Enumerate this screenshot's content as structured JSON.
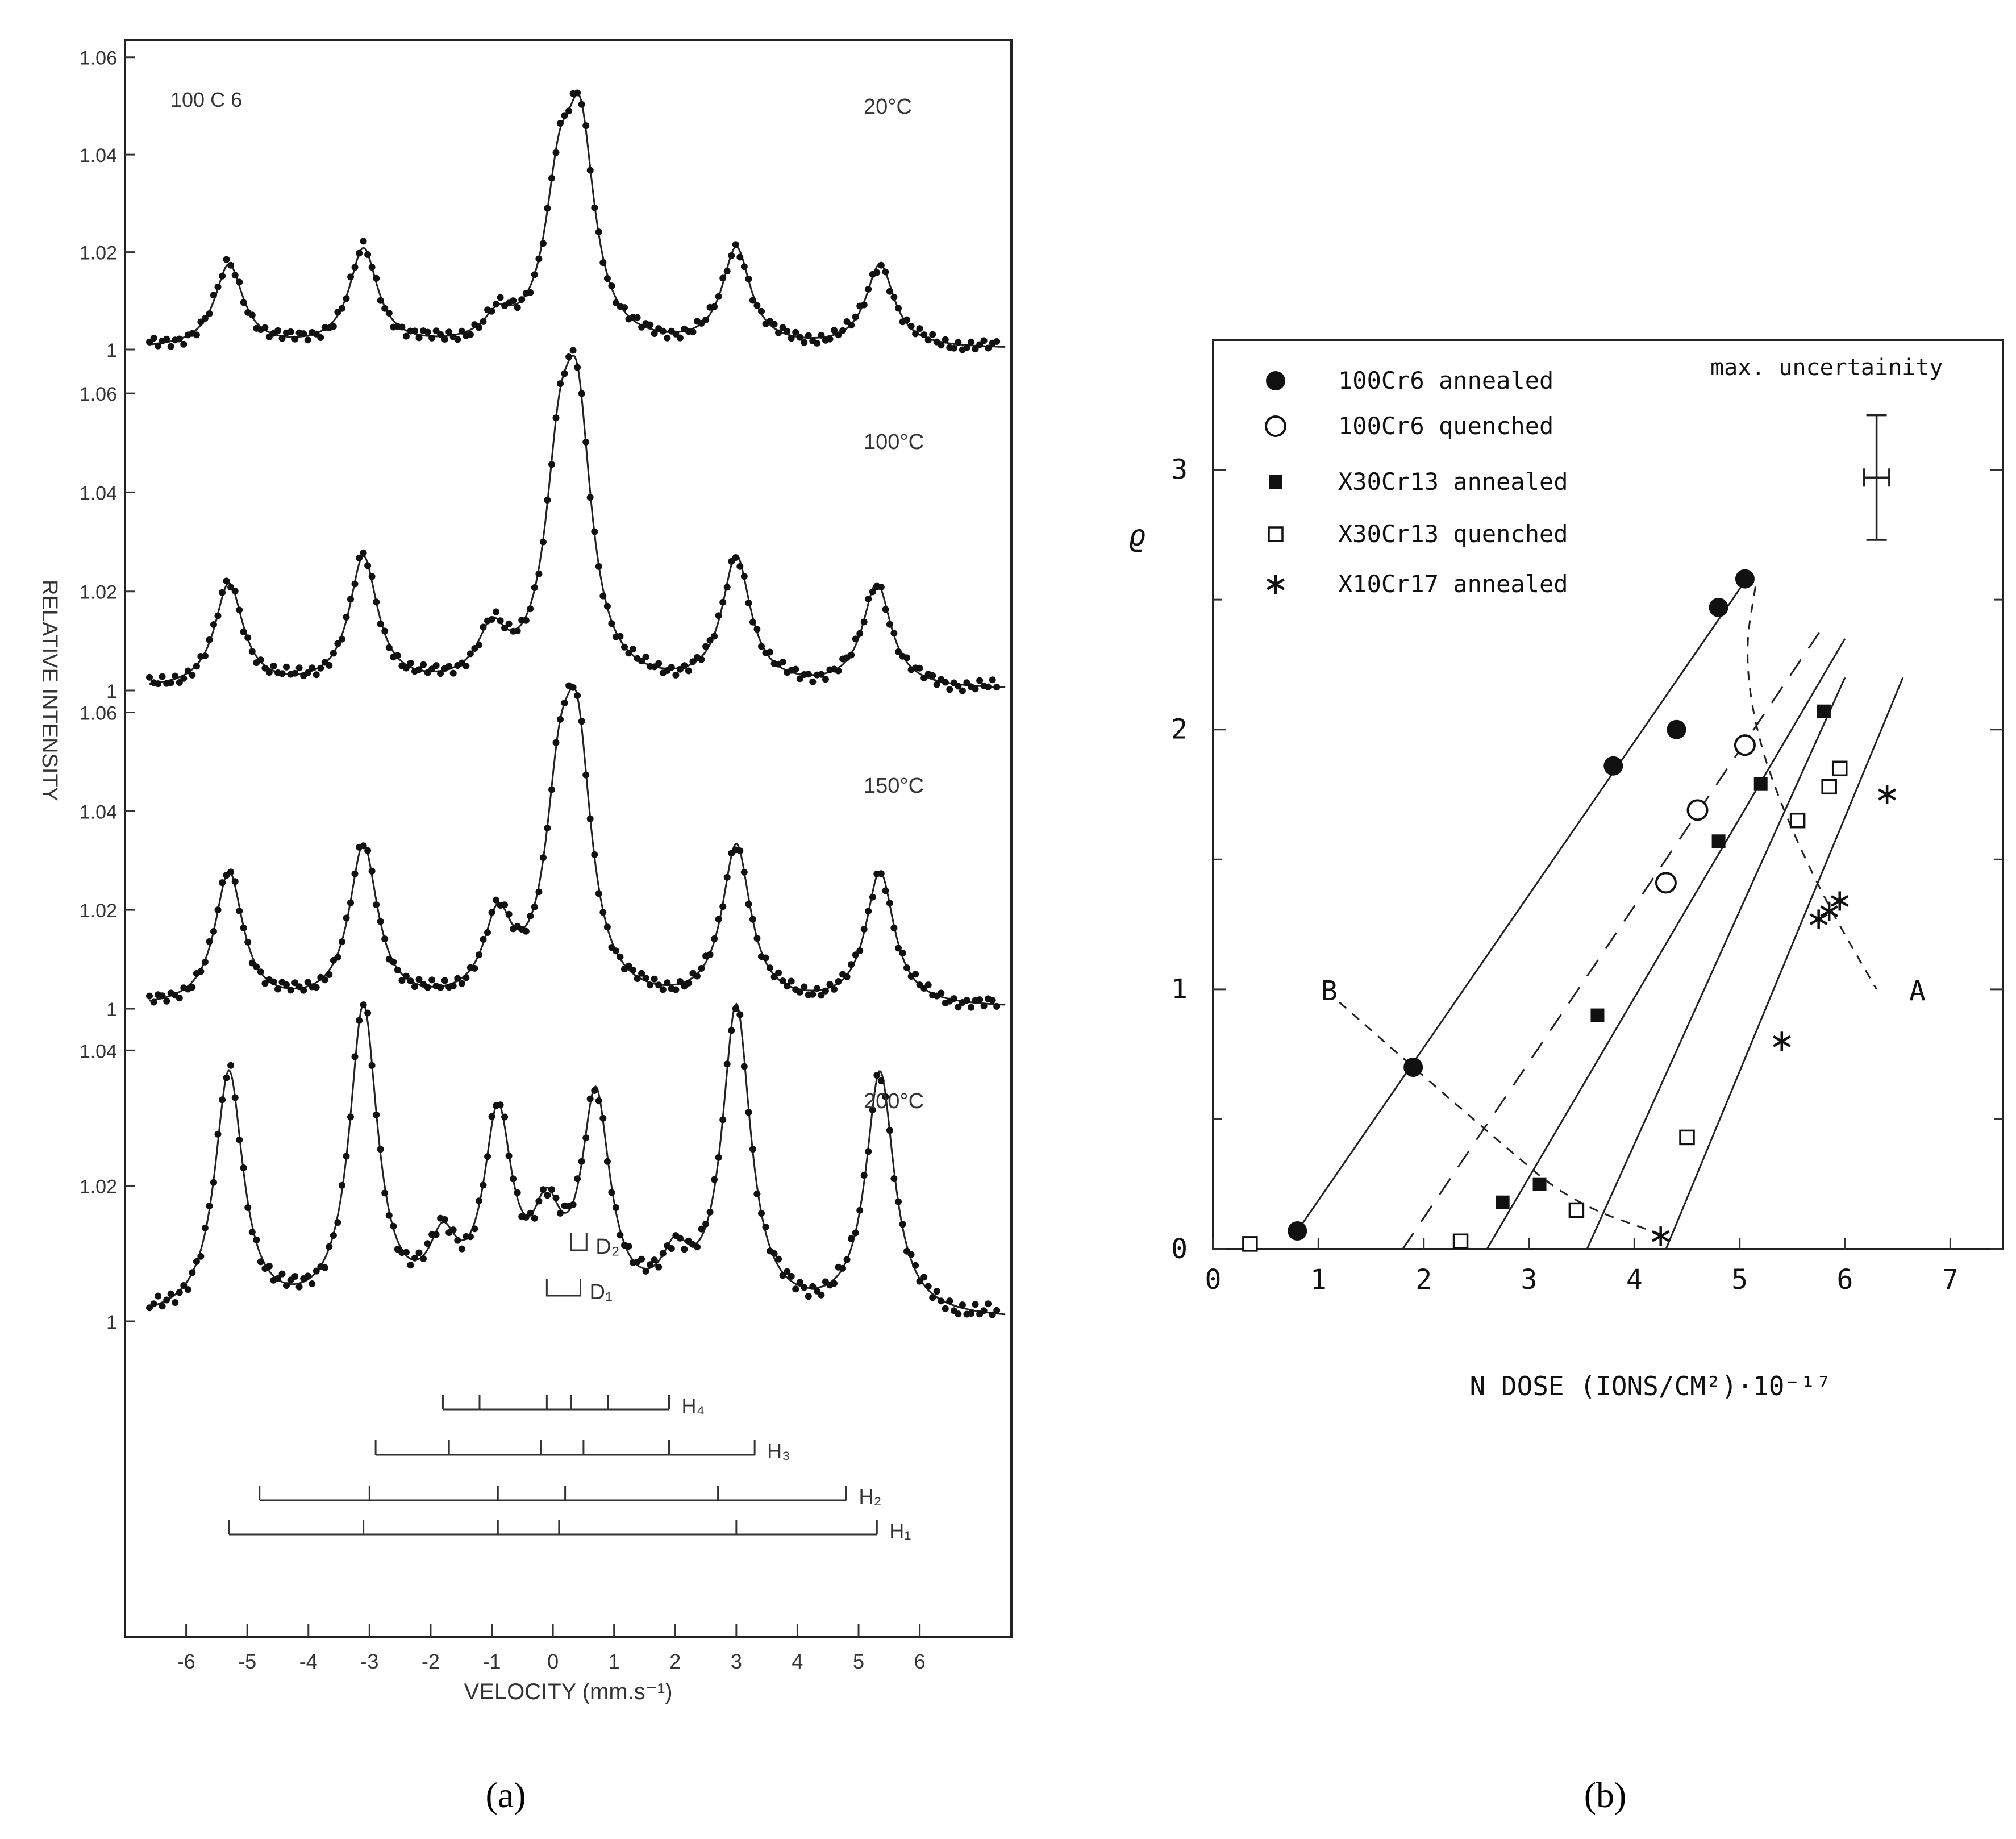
{
  "chart_data": [
    {
      "type": "line",
      "panel_label": "(a)",
      "xlabel": "VELOCITY (mm.s⁻¹)",
      "ylabel": "RELATIVE INTENSITY",
      "xlim": [
        -7,
        7.5
      ],
      "x_ticks": [
        "-6",
        "-5",
        "-4",
        "-3",
        "-2",
        "-1",
        "0",
        "1",
        "2",
        "3",
        "4",
        "5",
        "6"
      ],
      "sample_label": "100 C 6",
      "lorentz_width": 0.28,
      "series": [
        {
          "name": "20°C",
          "y_ticks": [
            "1",
            "1.02",
            "1.04",
            "1.06"
          ],
          "ylim": [
            1,
            1.063
          ],
          "peaks": [
            {
              "x": -5.3,
              "h": 0.017
            },
            {
              "x": -3.1,
              "h": 0.02
            },
            {
              "x": -0.9,
              "h": 0.005
            },
            {
              "x": 0.1,
              "h": 0.028
            },
            {
              "x": 0.45,
              "h": 0.04
            },
            {
              "x": 3.0,
              "h": 0.02
            },
            {
              "x": 5.35,
              "h": 0.017
            }
          ]
        },
        {
          "name": "100°C",
          "y_ticks": [
            "1",
            "1.02",
            "1.04",
            "1.06"
          ],
          "ylim": [
            1,
            1.07
          ],
          "peaks": [
            {
              "x": -5.3,
              "h": 0.021
            },
            {
              "x": -3.1,
              "h": 0.026
            },
            {
              "x": -1.0,
              "h": 0.01
            },
            {
              "x": 0.1,
              "h": 0.036
            },
            {
              "x": 0.4,
              "h": 0.048
            },
            {
              "x": 3.0,
              "h": 0.026
            },
            {
              "x": 5.3,
              "h": 0.021
            }
          ]
        },
        {
          "name": "150°C",
          "y_ticks": [
            "1",
            "1.02",
            "1.04",
            "1.06"
          ],
          "ylim": [
            1,
            1.065
          ],
          "peaks": [
            {
              "x": -5.3,
              "h": 0.027
            },
            {
              "x": -3.1,
              "h": 0.032
            },
            {
              "x": -0.9,
              "h": 0.016
            },
            {
              "x": 0.1,
              "h": 0.034
            },
            {
              "x": 0.4,
              "h": 0.046
            },
            {
              "x": 3.0,
              "h": 0.032
            },
            {
              "x": 5.35,
              "h": 0.027
            }
          ]
        },
        {
          "name": "200°C",
          "y_ticks": [
            "1",
            "1.02",
            "1.04"
          ],
          "ylim": [
            1,
            1.047
          ],
          "peaks": [
            {
              "x": -5.3,
              "h": 0.036
            },
            {
              "x": -3.1,
              "h": 0.045
            },
            {
              "x": -1.8,
              "h": 0.009
            },
            {
              "x": -0.9,
              "h": 0.028
            },
            {
              "x": -0.1,
              "h": 0.012
            },
            {
              "x": 0.7,
              "h": 0.031
            },
            {
              "x": 2.0,
              "h": 0.007
            },
            {
              "x": 3.0,
              "h": 0.045
            },
            {
              "x": 5.35,
              "h": 0.036
            }
          ]
        }
      ],
      "annotations": {
        "D2": {
          "label": "D₂",
          "x": [
            0.3,
            0.55
          ]
        },
        "D1": {
          "label": "D₁",
          "x": [
            -0.1,
            0.45
          ]
        }
      },
      "hyperfine_sets": [
        {
          "label": "H₄",
          "lines": [
            -1.8,
            -1.2,
            -0.1,
            0.3,
            0.9,
            1.9
          ]
        },
        {
          "label": "H₃",
          "lines": [
            -2.9,
            -1.7,
            -0.2,
            0.5,
            1.9,
            3.3
          ]
        },
        {
          "label": "H₂",
          "lines": [
            -4.8,
            -3.0,
            -0.9,
            0.2,
            2.7,
            4.8
          ]
        },
        {
          "label": "H₁",
          "lines": [
            -5.3,
            -3.1,
            -0.9,
            0.1,
            3.0,
            5.3
          ]
        }
      ]
    },
    {
      "type": "scatter",
      "panel_label": "(b)",
      "xlabel": "N DOSE (IONS/CM²)·10⁻¹⁷",
      "ylabel": "ϱ",
      "xlim": [
        0,
        7.5
      ],
      "ylim": [
        0,
        3.5
      ],
      "x_ticks": [
        "0",
        "1",
        "2",
        "3",
        "4",
        "5",
        "6",
        "7"
      ],
      "y_ticks": [
        "0",
        "1",
        "2",
        "3"
      ],
      "series": [
        {
          "name": "100Cr6 annealed",
          "marker": "filled-circle",
          "points": [
            [
              0.8,
              0.07
            ],
            [
              1.9,
              0.7
            ],
            [
              3.8,
              1.86
            ],
            [
              4.4,
              2.0
            ],
            [
              4.8,
              2.47
            ],
            [
              5.05,
              2.58
            ]
          ]
        },
        {
          "name": "100Cr6 quenched",
          "marker": "open-circle",
          "points": [
            [
              4.3,
              1.41
            ],
            [
              4.6,
              1.69
            ],
            [
              5.05,
              1.94
            ]
          ]
        },
        {
          "name": "X30Cr13 annealed",
          "marker": "filled-square",
          "points": [
            [
              2.75,
              0.18
            ],
            [
              3.1,
              0.25
            ],
            [
              3.65,
              0.9
            ],
            [
              4.8,
              1.57
            ],
            [
              5.2,
              1.79
            ],
            [
              5.8,
              2.07
            ]
          ]
        },
        {
          "name": "X30Cr13 quenched",
          "marker": "open-square",
          "points": [
            [
              0.35,
              0.02
            ],
            [
              2.35,
              0.03
            ],
            [
              3.45,
              0.15
            ],
            [
              4.5,
              0.43
            ],
            [
              5.55,
              1.65
            ],
            [
              5.85,
              1.78
            ],
            [
              5.95,
              1.85
            ]
          ]
        },
        {
          "name": "X10Cr17 annealed",
          "marker": "star",
          "points": [
            [
              4.25,
              0.05
            ],
            [
              5.4,
              0.8
            ],
            [
              5.75,
              1.27
            ],
            [
              5.85,
              1.3
            ],
            [
              5.95,
              1.34
            ],
            [
              6.4,
              1.75
            ]
          ]
        }
      ],
      "fit_lines": [
        {
          "style": "solid",
          "from": [
            0.8,
            0.07
          ],
          "to": [
            5.1,
            2.6
          ]
        },
        {
          "style": "dashed",
          "from": [
            1.8,
            0
          ],
          "to": [
            5.8,
            2.4
          ]
        },
        {
          "style": "solid",
          "from": [
            2.6,
            0
          ],
          "to": [
            6.0,
            2.35
          ]
        },
        {
          "style": "solid",
          "from": [
            3.55,
            0
          ],
          "to": [
            6.0,
            2.2
          ]
        },
        {
          "style": "solid",
          "from": [
            4.3,
            0
          ],
          "to": [
            6.55,
            2.2
          ]
        }
      ],
      "curves": [
        {
          "label": "A",
          "style": "dashed",
          "points": [
            [
              5.15,
              2.55
            ],
            [
              5.05,
              2.3
            ],
            [
              5.15,
              2.0
            ],
            [
              5.4,
              1.7
            ],
            [
              5.8,
              1.35
            ],
            [
              6.3,
              1.0
            ]
          ]
        },
        {
          "label": "B",
          "style": "dashed",
          "points": [
            [
              1.2,
              0.95
            ],
            [
              1.9,
              0.7
            ],
            [
              2.7,
              0.42
            ],
            [
              3.4,
              0.18
            ],
            [
              4.3,
              0.05
            ]
          ]
        }
      ],
      "curve_labels": {
        "A": "A",
        "B": "B"
      },
      "uncertainty_label": "max. uncertainity",
      "uncertainty": {
        "x": 6.3,
        "y": 2.97,
        "dx": 0.12,
        "dy": 0.24
      }
    }
  ]
}
